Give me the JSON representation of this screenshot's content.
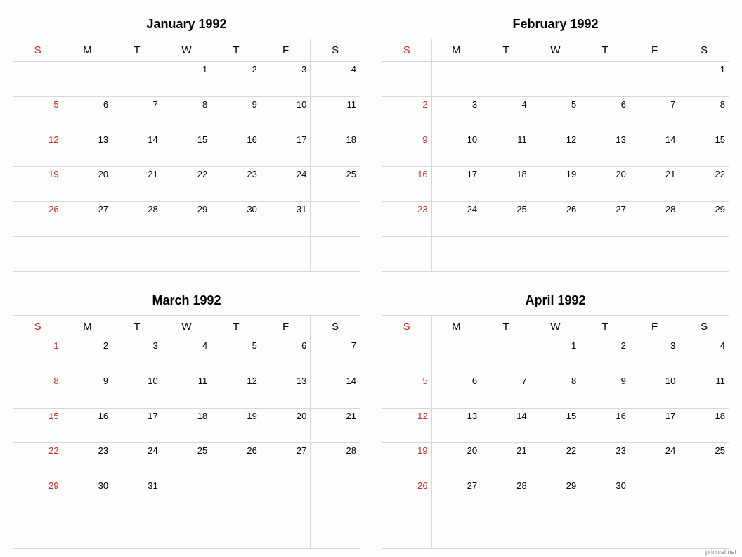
{
  "background_color": "#fcfffc",
  "border_color": "#d8d8d8",
  "text_color": "#000000",
  "sunday_color": "#e02020",
  "title_fontsize": 18,
  "dayheader_fontsize": 15,
  "daynum_fontsize": 13,
  "day_headers": [
    "S",
    "M",
    "T",
    "W",
    "T",
    "F",
    "S"
  ],
  "footer": "printcal.net",
  "months": [
    {
      "title": "January 1992",
      "weeks": [
        [
          "",
          "",
          "",
          "1",
          "2",
          "3",
          "4"
        ],
        [
          "5",
          "6",
          "7",
          "8",
          "9",
          "10",
          "11"
        ],
        [
          "12",
          "13",
          "14",
          "15",
          "16",
          "17",
          "18"
        ],
        [
          "19",
          "20",
          "21",
          "22",
          "23",
          "24",
          "25"
        ],
        [
          "26",
          "27",
          "28",
          "29",
          "30",
          "31",
          ""
        ],
        [
          "",
          "",
          "",
          "",
          "",
          "",
          ""
        ]
      ]
    },
    {
      "title": "February 1992",
      "weeks": [
        [
          "",
          "",
          "",
          "",
          "",
          "",
          "1"
        ],
        [
          "2",
          "3",
          "4",
          "5",
          "6",
          "7",
          "8"
        ],
        [
          "9",
          "10",
          "11",
          "12",
          "13",
          "14",
          "15"
        ],
        [
          "16",
          "17",
          "18",
          "19",
          "20",
          "21",
          "22"
        ],
        [
          "23",
          "24",
          "25",
          "26",
          "27",
          "28",
          "29"
        ],
        [
          "",
          "",
          "",
          "",
          "",
          "",
          ""
        ]
      ]
    },
    {
      "title": "March 1992",
      "weeks": [
        [
          "1",
          "2",
          "3",
          "4",
          "5",
          "6",
          "7"
        ],
        [
          "8",
          "9",
          "10",
          "11",
          "12",
          "13",
          "14"
        ],
        [
          "15",
          "16",
          "17",
          "18",
          "19",
          "20",
          "21"
        ],
        [
          "22",
          "23",
          "24",
          "25",
          "26",
          "27",
          "28"
        ],
        [
          "29",
          "30",
          "31",
          "",
          "",
          "",
          ""
        ],
        [
          "",
          "",
          "",
          "",
          "",
          "",
          ""
        ]
      ]
    },
    {
      "title": "April 1992",
      "weeks": [
        [
          "",
          "",
          "",
          "1",
          "2",
          "3",
          "4"
        ],
        [
          "5",
          "6",
          "7",
          "8",
          "9",
          "10",
          "11"
        ],
        [
          "12",
          "13",
          "14",
          "15",
          "16",
          "17",
          "18"
        ],
        [
          "19",
          "20",
          "21",
          "22",
          "23",
          "24",
          "25"
        ],
        [
          "26",
          "27",
          "28",
          "29",
          "30",
          "",
          ""
        ],
        [
          "",
          "",
          "",
          "",
          "",
          "",
          ""
        ]
      ]
    }
  ]
}
